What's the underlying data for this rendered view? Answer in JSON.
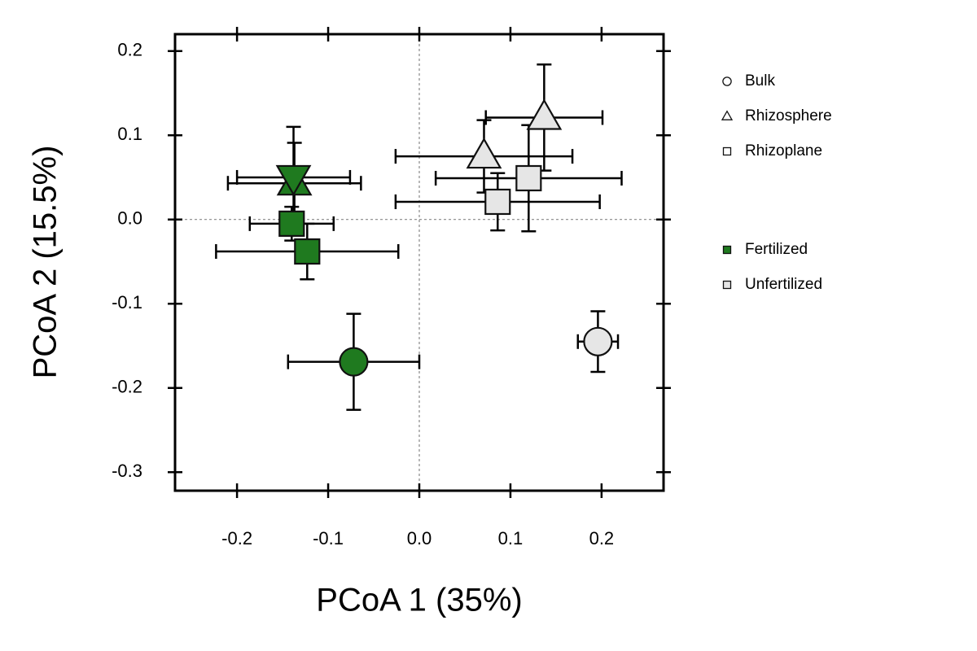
{
  "chart_data": {
    "type": "scatter",
    "xlabel": "PCoA 1 (35%)",
    "ylabel": "PCoA 2 (15.5%)",
    "xlim": [
      -0.268,
      0.268
    ],
    "ylim": [
      -0.322,
      0.22
    ],
    "xticks": [
      -0.2,
      -0.1,
      {
        "value": 0,
        "label": "0.0"
      },
      0.1,
      0.2
    ],
    "yticks": [
      -0.3,
      -0.2,
      -0.1,
      {
        "value": 0,
        "label": "0.0"
      },
      0.1,
      0.2
    ],
    "hlines": [
      0
    ],
    "vlines": [
      0
    ],
    "shape_legend": [
      "Bulk",
      "Rhizosphere",
      "Rhizoplane"
    ],
    "series": [
      {
        "name": "Fertilized",
        "color": "#1f7a1f",
        "markers": [
          "circle",
          "triangle-up",
          "triangle-down",
          "square",
          "square"
        ],
        "x": [
          -0.072,
          -0.137,
          -0.138,
          -0.14,
          -0.123
        ],
        "values": [
          -0.169,
          0.043,
          0.05,
          -0.005,
          -0.038
        ],
        "xerr": [
          0.072,
          0.073,
          0.062,
          0.046,
          0.1
        ],
        "yerr": [
          0.057,
          0.048,
          0.06,
          0.02,
          0.033
        ]
      },
      {
        "name": "Unfertilized",
        "color": "#e6e6e6",
        "markers": [
          "circle",
          "triangle-up",
          "triangle-up",
          "square",
          "square"
        ],
        "x": [
          0.196,
          0.137,
          0.071,
          0.12,
          0.086
        ],
        "values": [
          -0.145,
          0.121,
          0.075,
          0.049,
          0.021
        ],
        "xerr": [
          0.022,
          0.064,
          0.097,
          0.102,
          0.112
        ],
        "yerr": [
          0.036,
          0.063,
          0.043,
          0.063,
          0.034
        ]
      }
    ]
  }
}
